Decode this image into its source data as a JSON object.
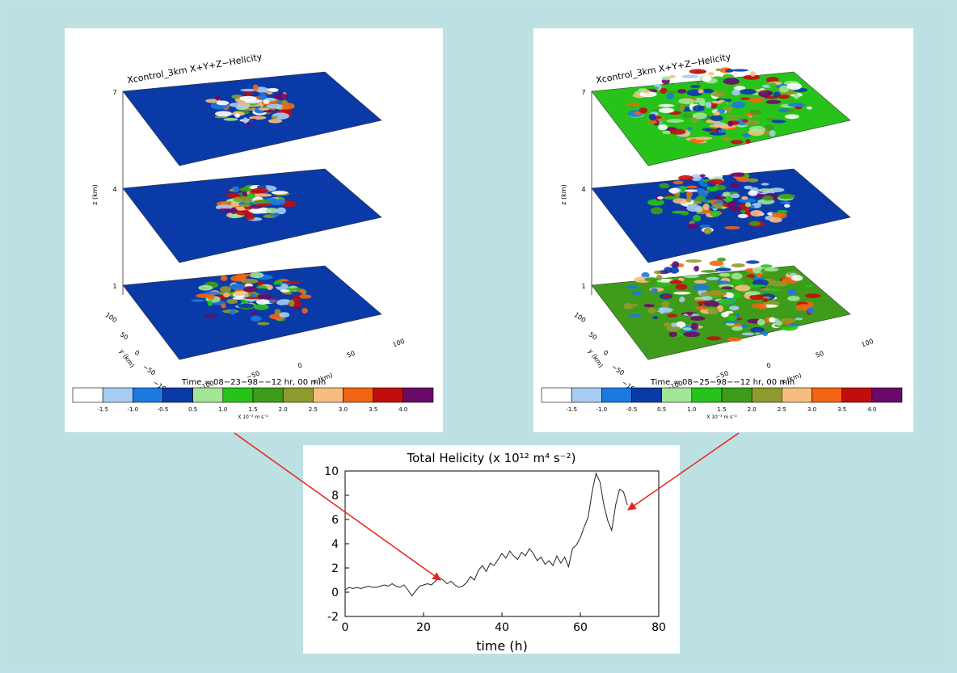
{
  "colorbar": {
    "colors": [
      "#ffffff",
      "#a7cdf4",
      "#1a7ae0",
      "#0a3aa8",
      "#a2e696",
      "#27c31b",
      "#3f9c1b",
      "#8f9a2c",
      "#f8bc7e",
      "#f36512",
      "#c20d0d",
      "#6a0a6b"
    ],
    "ticks": [
      "-1.5",
      "-1.0",
      "-0.5",
      "0.5",
      "1.0",
      "1.5",
      "2.0",
      "2.5",
      "3.0",
      "3.5",
      "4.0"
    ],
    "unit": "X 10⁻³ m s⁻²"
  },
  "panels": [
    {
      "id": "left",
      "title": "Xcontrol_3km  X+Y+Z−Helicity",
      "z_label": "z (km)",
      "z_ticks": [
        "7",
        "4",
        "1"
      ],
      "y_label": "y (km)",
      "y_ticks": [
        "100",
        "50",
        "0",
        "−50",
        "−100"
      ],
      "x_label": "x (km)",
      "x_ticks": [
        "−100",
        "−50",
        "0",
        "50",
        "100"
      ],
      "time": "Time = 08−23−98−−12 hr, 00 min",
      "layer_fills": [
        "#0a3aa8",
        "#0a3aa8",
        "#0a3aa8"
      ],
      "activity": [
        0.25,
        0.2,
        0.45
      ]
    },
    {
      "id": "right",
      "title": "Xcontrol_3km  X+Y+Z−Helicity",
      "z_label": "z (km)",
      "z_ticks": [
        "7",
        "4",
        "1"
      ],
      "y_label": "y (km)",
      "y_ticks": [
        "100",
        "50",
        "0",
        "−50",
        "−100"
      ],
      "x_label": "x (km)",
      "x_ticks": [
        "−100",
        "−50",
        "0",
        "50",
        "100"
      ],
      "time": "Time = 08−25−98−−12 hr, 00 min",
      "layer_fills": [
        "#27c31b",
        "#0a3aa8",
        "#3f9c1b"
      ],
      "activity": [
        0.85,
        0.6,
        0.95
      ]
    }
  ],
  "chart_data": {
    "type": "line",
    "title": "Total Helicity (x 10¹² m⁴ s⁻²)",
    "xlabel": "time (h)",
    "ylabel": "",
    "xlim": [
      0,
      80
    ],
    "ylim": [
      -2,
      10
    ],
    "x_ticks": [
      "0",
      "20",
      "40",
      "60",
      "80"
    ],
    "y_ticks": [
      "10",
      "8",
      "6",
      "4",
      "2",
      "0",
      "-2"
    ],
    "grid": false,
    "series": [
      {
        "x": [
          0,
          1,
          2,
          3,
          4,
          5,
          6,
          7,
          8,
          9,
          10,
          11,
          12,
          13,
          14,
          15,
          16,
          17,
          18,
          19,
          20,
          21,
          22,
          23,
          24,
          25,
          26,
          27,
          28,
          29,
          30,
          31,
          32,
          33,
          34,
          35,
          36,
          37,
          38,
          39,
          40,
          41,
          42,
          43,
          44,
          45,
          46,
          47,
          48,
          49,
          50,
          51,
          52,
          53,
          54,
          55,
          56,
          57,
          58,
          59,
          60,
          61,
          62,
          63,
          64,
          65,
          66,
          67,
          68,
          69,
          70,
          71,
          72
        ],
        "values": [
          0.2,
          0.4,
          0.3,
          0.4,
          0.3,
          0.4,
          0.5,
          0.4,
          0.4,
          0.5,
          0.6,
          0.5,
          0.7,
          0.5,
          0.4,
          0.6,
          0.2,
          -0.3,
          0.1,
          0.5,
          0.6,
          0.7,
          0.6,
          0.9,
          1.2,
          1.0,
          0.7,
          0.9,
          0.6,
          0.4,
          0.5,
          0.8,
          1.3,
          1.0,
          1.8,
          2.2,
          1.7,
          2.4,
          2.2,
          2.7,
          3.2,
          2.8,
          3.4,
          3.0,
          2.7,
          3.3,
          3.0,
          3.6,
          3.2,
          2.6,
          2.9,
          2.3,
          2.6,
          2.2,
          3.0,
          2.4,
          2.9,
          2.1,
          3.6,
          3.9,
          4.5,
          5.4,
          6.2,
          8.3,
          9.8,
          9.1,
          7.2,
          5.9,
          5.1,
          7.2,
          8.5,
          8.3,
          7.2
        ]
      }
    ],
    "annotations": [
      {
        "from": "panel-left",
        "to_x": 24,
        "to_y": 1.2
      },
      {
        "from": "panel-right",
        "to_x": 71,
        "to_y": 7.0
      }
    ]
  }
}
